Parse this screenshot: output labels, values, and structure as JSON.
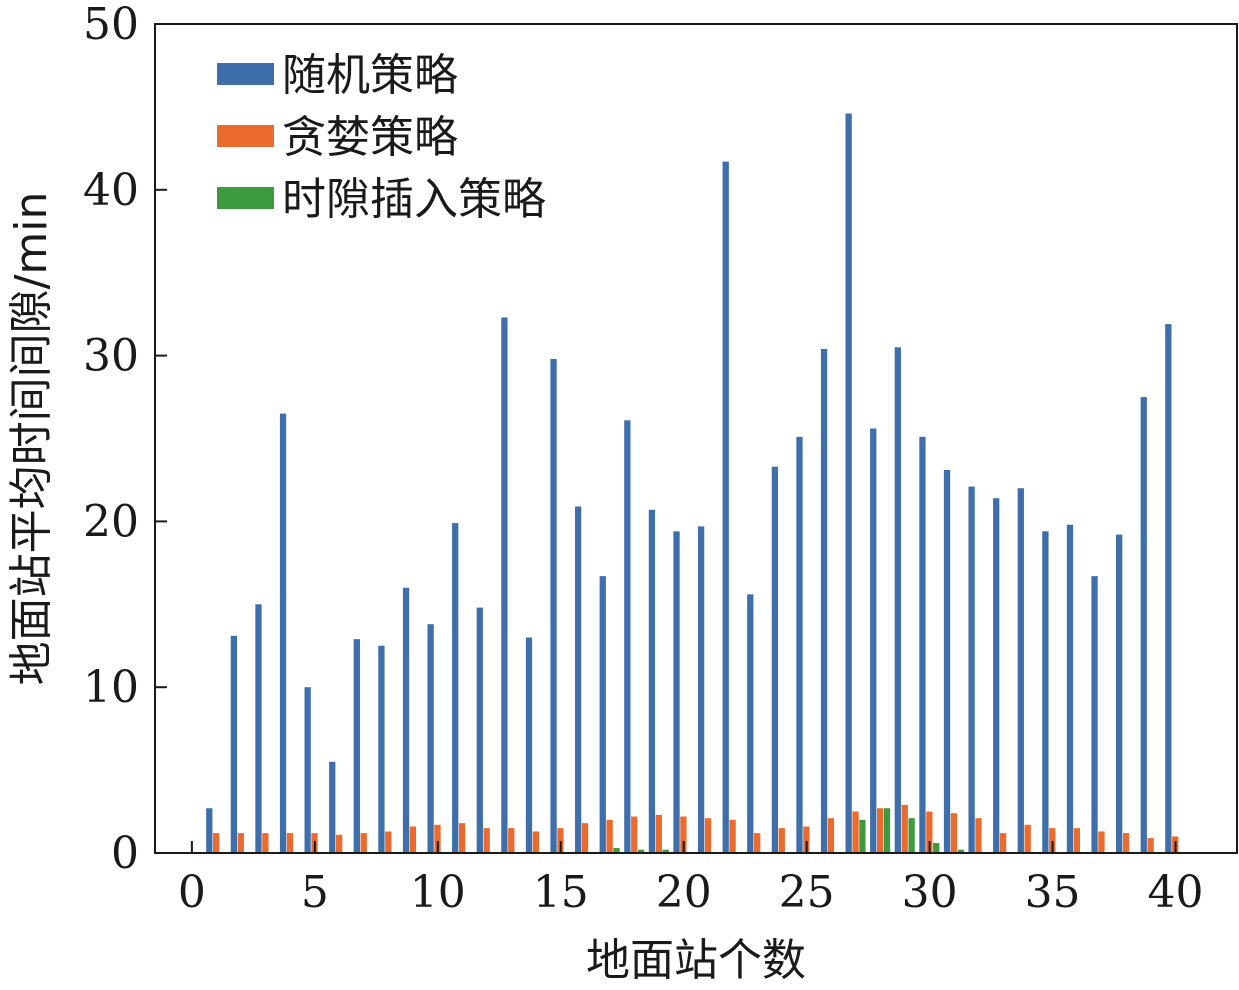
{
  "chart_data": {
    "type": "bar",
    "x": [
      1,
      2,
      3,
      4,
      5,
      6,
      7,
      8,
      9,
      10,
      11,
      12,
      13,
      14,
      15,
      16,
      17,
      18,
      19,
      20,
      21,
      22,
      23,
      24,
      25,
      26,
      27,
      28,
      29,
      30,
      31,
      32,
      33,
      34,
      35,
      36,
      37,
      38,
      39,
      40
    ],
    "series": [
      {
        "name": "随机策略",
        "color": "#3f6faa",
        "values": [
          2.7,
          13.1,
          15.0,
          26.5,
          10.0,
          5.5,
          12.9,
          12.5,
          16.0,
          13.8,
          19.9,
          14.8,
          32.3,
          13.0,
          29.8,
          20.9,
          16.7,
          26.1,
          20.7,
          19.4,
          19.7,
          41.7,
          15.6,
          23.3,
          25.1,
          30.4,
          44.6,
          25.6,
          30.5,
          25.1,
          23.1,
          22.1,
          21.4,
          22.0,
          19.4,
          19.8,
          16.7,
          19.2,
          27.5,
          31.9
        ]
      },
      {
        "name": "贪婪策略",
        "color": "#ea6b2d",
        "values": [
          1.2,
          1.2,
          1.2,
          1.2,
          1.2,
          1.1,
          1.2,
          1.3,
          1.6,
          1.7,
          1.8,
          1.5,
          1.5,
          1.3,
          1.5,
          1.8,
          2.0,
          2.2,
          2.3,
          2.2,
          2.1,
          2.0,
          1.2,
          1.5,
          1.6,
          2.1,
          2.5,
          2.7,
          2.9,
          2.5,
          2.4,
          2.1,
          1.2,
          1.7,
          1.5,
          1.5,
          1.3,
          1.2,
          0.9,
          1.0
        ]
      },
      {
        "name": "时隙插入策略",
        "color": "#3d9a3f",
        "values": [
          0,
          0,
          0,
          0,
          0,
          0,
          0,
          0,
          0,
          0,
          0,
          0,
          0,
          0,
          0,
          0,
          0.3,
          0.2,
          0.2,
          0,
          0,
          0,
          0,
          0,
          0,
          0,
          2.0,
          2.7,
          2.1,
          0.6,
          0.2,
          0,
          0,
          0,
          0,
          0,
          0,
          0,
          0,
          0
        ]
      }
    ],
    "xticks": [
      0,
      5,
      10,
      15,
      20,
      25,
      30,
      35,
      40
    ],
    "yticks": [
      0,
      10,
      20,
      30,
      40,
      50
    ],
    "xlim": [
      -1.5,
      42.5
    ],
    "ylim": [
      0,
      50
    ],
    "xlabel": "地面站个数",
    "ylabel": "地面站平均时间间隙/min",
    "legend_position": "top-left",
    "grid": false
  }
}
